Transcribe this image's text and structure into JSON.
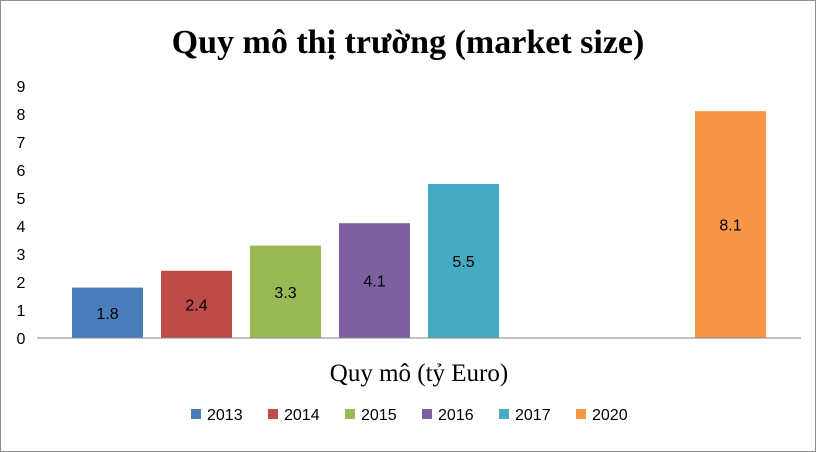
{
  "chart_data": {
    "type": "bar",
    "title": "Quy mô thị trường (market size)",
    "xlabel": "Quy mô (tỷ Euro)",
    "ylabel": "",
    "ylim": [
      0,
      9
    ],
    "yticks": [
      0,
      1,
      2,
      3,
      4,
      5,
      6,
      7,
      8,
      9
    ],
    "grid": false,
    "legend_position": "bottom",
    "series": [
      {
        "name": "2013",
        "values": [
          1.8
        ],
        "label": "1.8",
        "color": "#4a7ebb"
      },
      {
        "name": "2014",
        "values": [
          2.4
        ],
        "label": "2.4",
        "color": "#be4b48"
      },
      {
        "name": "2015",
        "values": [
          3.3
        ],
        "label": "3.3",
        "color": "#98b954"
      },
      {
        "name": "2016",
        "values": [
          4.1
        ],
        "label": "4.1",
        "color": "#7d60a0"
      },
      {
        "name": "2017",
        "values": [
          5.5
        ],
        "label": "5.5",
        "color": "#46aac5"
      },
      {
        "name": "2020",
        "values": [
          8.1
        ],
        "label": "8.1",
        "color": "#f79646"
      }
    ]
  }
}
